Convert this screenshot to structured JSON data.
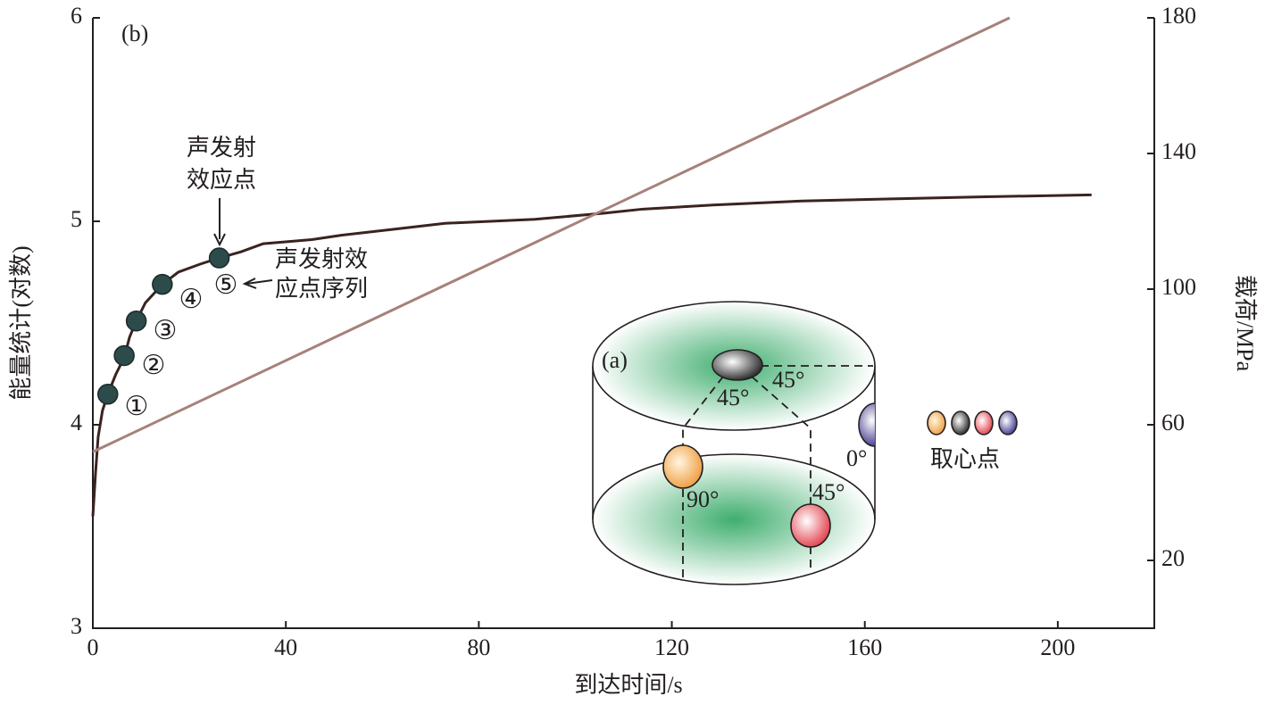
{
  "chart_data": {
    "type": "line",
    "xlabel": "到达时间/s",
    "ylabel": "能量统计(对数)",
    "y2label": "载荷/MPa",
    "xlim": [
      0,
      220
    ],
    "xticks": [
      0,
      40,
      80,
      120,
      160,
      200
    ],
    "ylim": [
      3,
      6
    ],
    "yticks": [
      3,
      4,
      5,
      6
    ],
    "y2lim": [
      0,
      180
    ],
    "y2ticks": [
      20,
      60,
      100,
      140,
      180
    ],
    "series": [
      {
        "type": "line",
        "color": "#3a2320",
        "axis": "y",
        "x": [
          0,
          0.55,
          1.1,
          2,
          3.1,
          4.8,
          6.5,
          7.6,
          9,
          10.9,
          14.4,
          17.7,
          22.3,
          26.2,
          30.7,
          35.3,
          45.4,
          51,
          62,
          73,
          91.6,
          106,
          114,
          128.5,
          147,
          165.5,
          184,
          207
        ],
        "values": [
          3.55,
          3.76,
          3.94,
          4.07,
          4.15,
          4.25,
          4.33,
          4.43,
          4.51,
          4.6,
          4.69,
          4.75,
          4.79,
          4.82,
          4.85,
          4.89,
          4.91,
          4.93,
          4.96,
          4.99,
          5.01,
          5.04,
          5.06,
          5.08,
          5.1,
          5.11,
          5.12,
          5.13
        ]
      },
      {
        "type": "line",
        "color": "#a6817a",
        "axis": "y2",
        "x": [
          0,
          190
        ],
        "values": [
          52,
          180
        ]
      },
      {
        "type": "scatter",
        "color": "#2e4b4b",
        "axis": "y",
        "x": [
          3.1,
          6.5,
          9,
          14.4,
          26.2
        ],
        "values": [
          4.15,
          4.34,
          4.51,
          4.69,
          4.82
        ]
      }
    ],
    "annotations": {
      "panel": "(b)",
      "effect_point": [
        "声发射",
        "效应点"
      ],
      "sequence": [
        "声发射效",
        "应点序列"
      ],
      "point_labels": [
        "①",
        "②",
        "③",
        "④",
        "⑤"
      ]
    },
    "inset": {
      "label": "(a)",
      "angles": [
        "45°",
        "45°",
        "0°",
        "90°",
        "45°"
      ],
      "legend_label": "取心点"
    }
  }
}
